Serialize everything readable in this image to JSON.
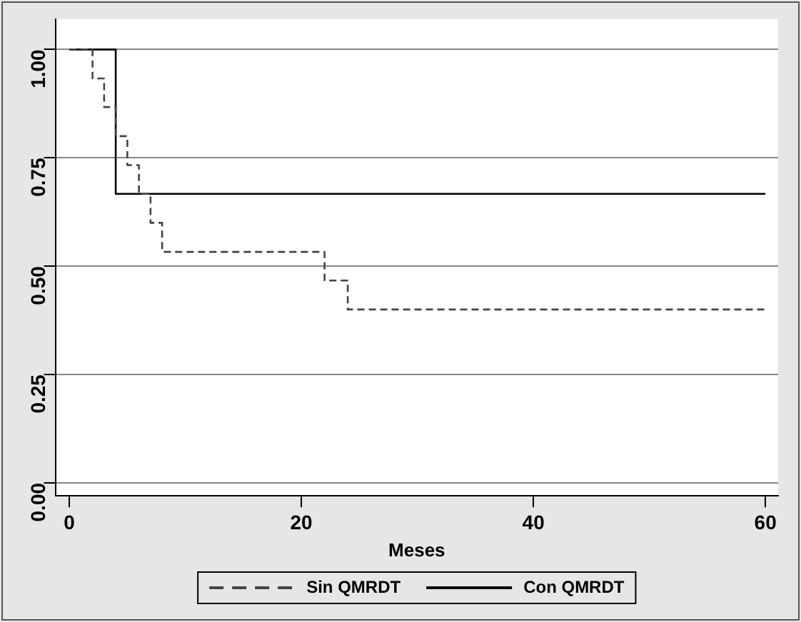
{
  "chart_data": {
    "type": "step",
    "xlabel": "Meses",
    "xlim": [
      -1.2,
      61.1
    ],
    "xticks": [
      0,
      20,
      40,
      60
    ],
    "ylim": [
      -0.03,
      1.07
    ],
    "yticks": [
      {
        "value": 0,
        "label": "0.00"
      },
      {
        "value": 0.25,
        "label": "0.25"
      },
      {
        "value": 0.5,
        "label": "0.50"
      },
      {
        "value": 0.75,
        "label": "0.75"
      },
      {
        "value": 1,
        "label": "1.00"
      }
    ],
    "grid": "y",
    "legend": "bottom",
    "marker": "none",
    "series": [
      {
        "name": "Sin QMRDT",
        "color": "#444444",
        "line_style": "dashed",
        "x": [
          0,
          2,
          3,
          4,
          5,
          6,
          7,
          8,
          22,
          24,
          60
        ],
        "values": [
          1,
          0.933,
          0.867,
          0.8,
          0.733,
          0.667,
          0.6,
          0.533,
          0.467,
          0.4,
          0.4
        ]
      },
      {
        "name": "Con QMRDT",
        "color": "#000000",
        "line_style": "solid",
        "x": [
          0,
          4,
          60
        ],
        "values": [
          1,
          0.667,
          0.667
        ]
      }
    ]
  }
}
